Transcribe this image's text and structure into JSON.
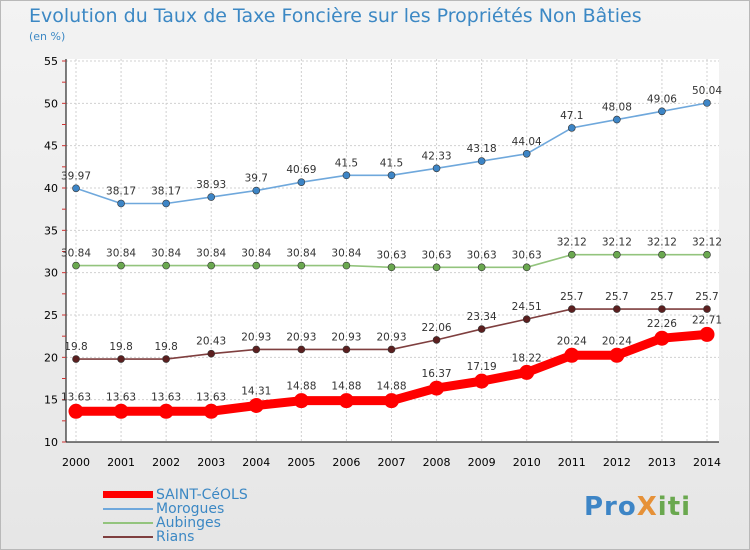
{
  "title": "Evolution du Taux de Taxe Foncière sur les Propriétés Non Bâties",
  "unit": "(en %)",
  "logo": "ProXiti",
  "chart_data": {
    "type": "line",
    "categories": [
      "2000",
      "2001",
      "2002",
      "2003",
      "2004",
      "2005",
      "2006",
      "2007",
      "2008",
      "2009",
      "2010",
      "2011",
      "2012",
      "2013",
      "2014"
    ],
    "ylim": [
      10,
      55
    ],
    "yticks": [
      10,
      15,
      20,
      25,
      30,
      35,
      40,
      45,
      50,
      55
    ],
    "grid": true,
    "series": [
      {
        "name": "SAINT-CéOLS",
        "color": "#ff0000",
        "marker": "#ff0000",
        "values": [
          13.63,
          13.63,
          13.63,
          13.63,
          14.31,
          14.88,
          14.88,
          14.88,
          16.37,
          17.19,
          18.22,
          20.24,
          20.24,
          22.26,
          22.71
        ],
        "labels": [
          "13.63",
          "13.63",
          "13.63",
          "13.63",
          "14.31",
          "14.88",
          "14.88",
          "14.88",
          "16.37",
          "17.19",
          "18.22",
          "20.24",
          "20.24",
          "22.26",
          "22.71"
        ]
      },
      {
        "name": "Morogues",
        "color": "#6fa8dc",
        "marker": "#3d85c6",
        "values": [
          39.97,
          38.17,
          38.17,
          38.93,
          39.7,
          40.69,
          41.5,
          41.5,
          42.33,
          43.18,
          44.04,
          47.1,
          48.08,
          49.06,
          50.04
        ],
        "labels": [
          "39.97",
          "38.17",
          "38.17",
          "38.93",
          "39.7",
          "40.69",
          "41.5",
          "41.5",
          "42.33",
          "43.18",
          "44.04",
          "47.1",
          "48.08",
          "49.06",
          "50.04"
        ]
      },
      {
        "name": "Aubinges",
        "color": "#93c47d",
        "marker": "#6aa84f",
        "values": [
          30.84,
          30.84,
          30.84,
          30.84,
          30.84,
          30.84,
          30.84,
          30.63,
          30.63,
          30.63,
          30.63,
          32.12,
          32.12,
          32.12,
          32.12
        ],
        "labels": [
          "30.84",
          "30.84",
          "30.84",
          "30.84",
          "30.84",
          "30.84",
          "30.84",
          "30.63",
          "30.63",
          "30.63",
          "30.63",
          "32.12",
          "32.12",
          "32.12",
          "32.12"
        ]
      },
      {
        "name": "Rians",
        "color": "#7f3f3f",
        "marker": "#5b1f1f",
        "values": [
          19.8,
          19.8,
          19.8,
          20.43,
          20.93,
          20.93,
          20.93,
          20.93,
          22.06,
          23.34,
          24.51,
          25.7,
          25.7,
          25.7,
          25.7
        ],
        "labels": [
          "19.8",
          "19.8",
          "19.8",
          "20.43",
          "20.93",
          "20.93",
          "20.93",
          "20.93",
          "22.06",
          "23.34",
          "24.51",
          "25.7",
          "25.7",
          "25.7",
          "25.7"
        ]
      }
    ]
  }
}
